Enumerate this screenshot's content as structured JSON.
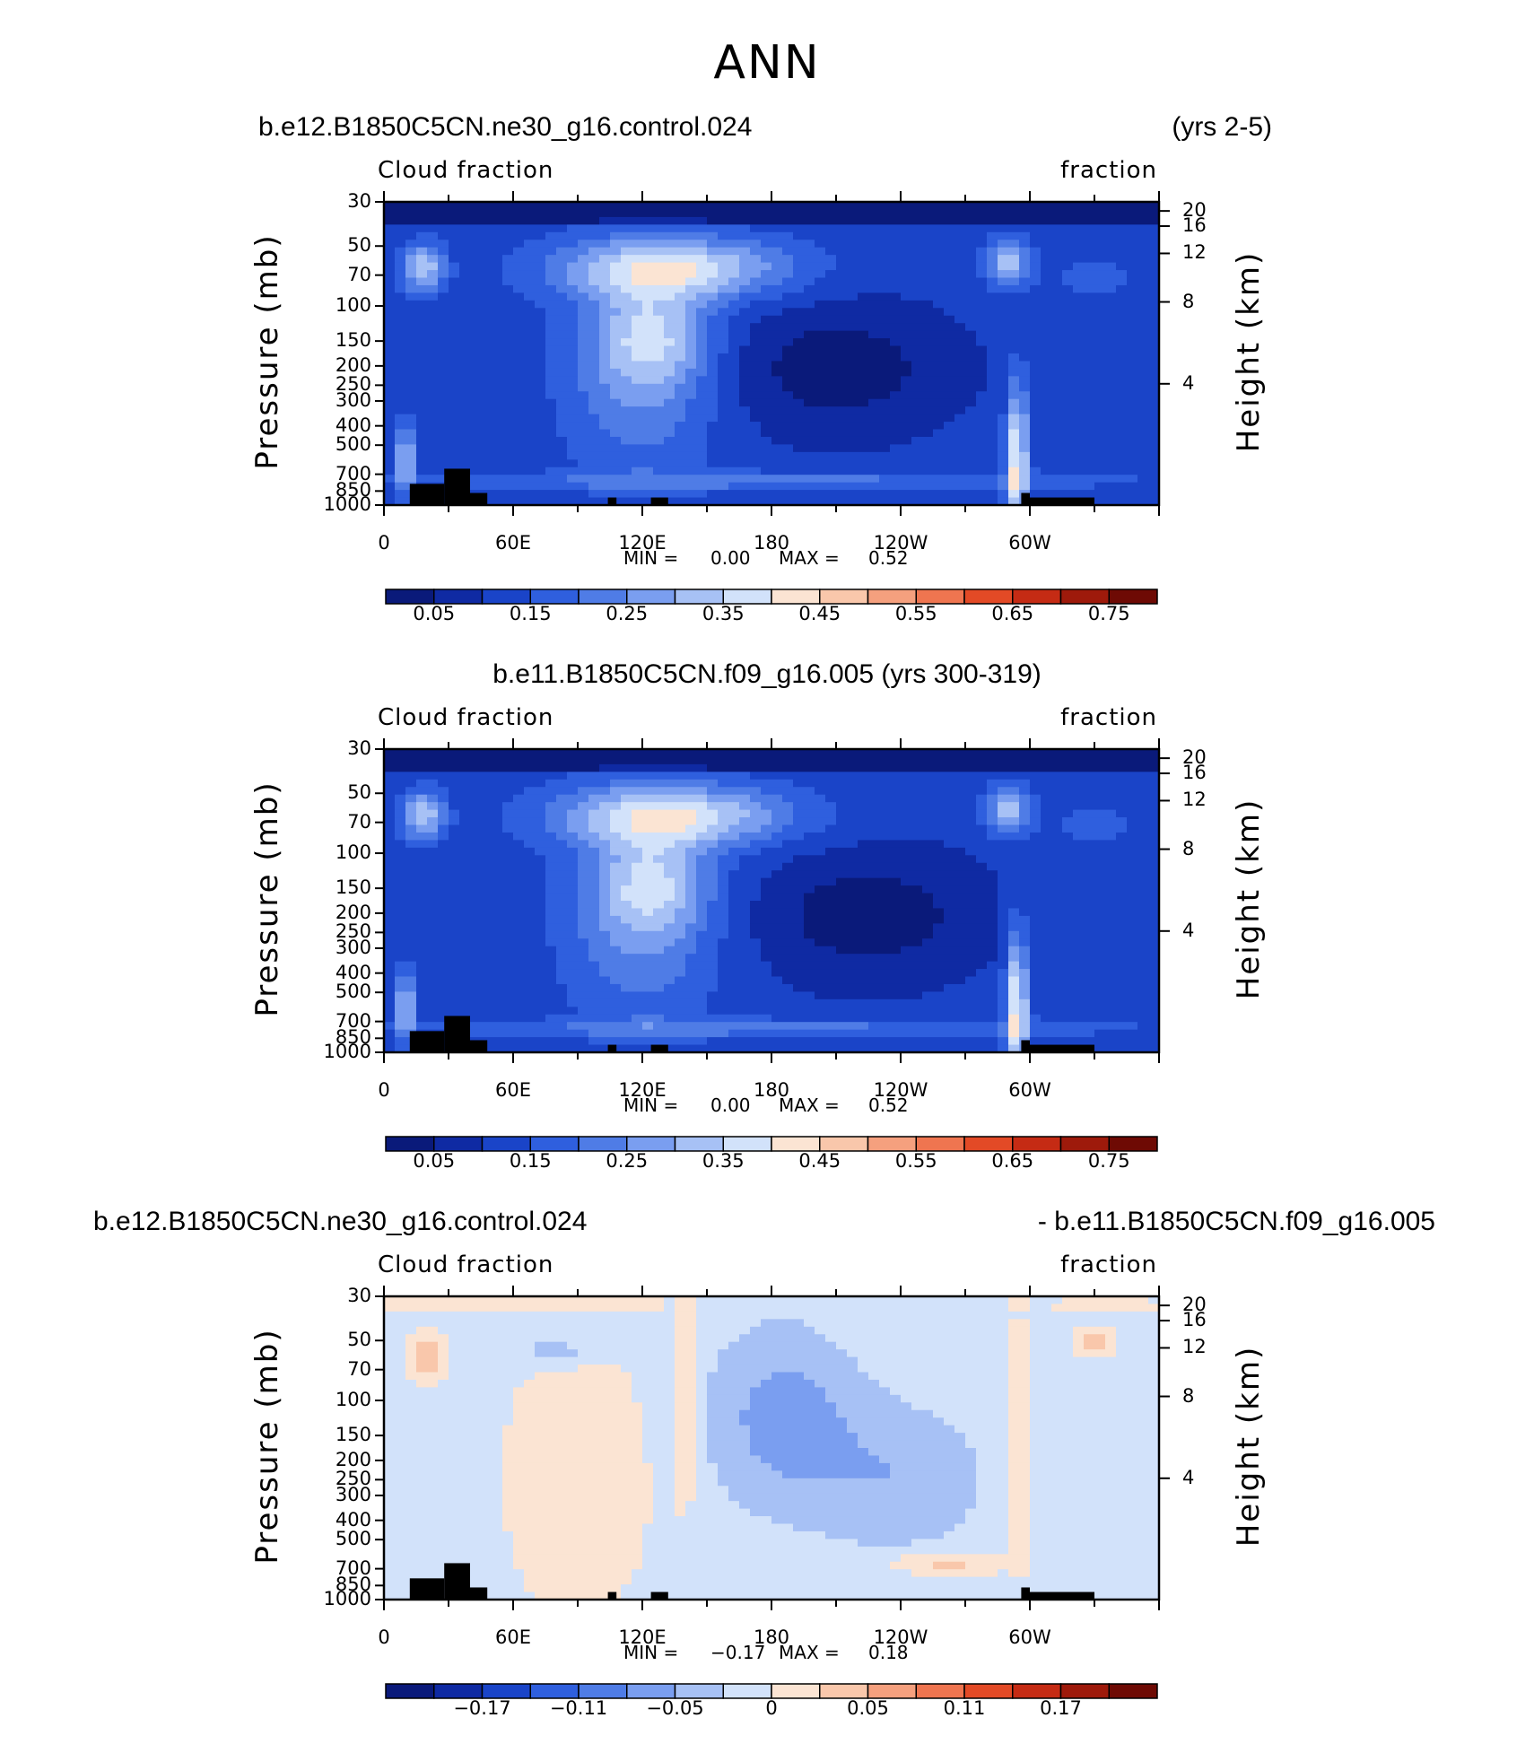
{
  "title": "ANN",
  "panels": [
    {
      "case_title": "b.e12.B1850C5CN.ne30_g16.control.024",
      "years": "(yrs 2-5)",
      "left_label": "Cloud fraction",
      "right_label": "fraction",
      "stats": {
        "min_label": "MIN =",
        "min": "0.00",
        "max_label": "MAX =",
        "max": "0.52"
      }
    },
    {
      "case_title": "b.e11.B1850C5CN.f09_g16.005 (yrs 300-319)",
      "left_label": "Cloud fraction",
      "right_label": "fraction",
      "stats": {
        "min_label": "MIN =",
        "min": "0.00",
        "max_label": "MAX =",
        "max": "0.52"
      }
    },
    {
      "case_title": "b.e12.B1850C5CN.ne30_g16.control.024",
      "case_title_right": "- b.e11.B1850C5CN.f09_g16.005",
      "left_label": "Cloud fraction",
      "right_label": "fraction",
      "stats": {
        "min_label": "MIN =",
        "min": "−0.17",
        "max_label": "MAX =",
        "max": "0.18"
      }
    }
  ],
  "chart_data": [
    {
      "type": "heatmap",
      "variable": "Cloud fraction",
      "units": "fraction",
      "x_ticklabels": [
        "0",
        "60E",
        "120E",
        "180",
        "120W",
        "60W"
      ],
      "x_range_deg_east": [
        0,
        360
      ],
      "y_left_label": "Pressure (mb)",
      "y_left_ticks": [
        30,
        50,
        70,
        100,
        150,
        200,
        250,
        300,
        400,
        500,
        700,
        850,
        1000
      ],
      "y_left_ticklabels": [
        "30",
        "50",
        "70",
        "100",
        "150",
        "200",
        "250",
        "300",
        "400",
        "500",
        "700",
        "850",
        "1000"
      ],
      "y_right_label": "Height (km)",
      "y_right_ticks": [
        20,
        16,
        12,
        8,
        4
      ],
      "y_right_ticklabels": [
        "20",
        "16",
        "12",
        "8",
        "4"
      ],
      "colorbar_ticklabels": [
        "0.05",
        "0.15",
        "0.25",
        "0.35",
        "0.45",
        "0.55",
        "0.65",
        "0.75"
      ],
      "colorbar_levels": 16,
      "min": 0.0,
      "max": 0.52
    },
    {
      "type": "heatmap",
      "variable": "Cloud fraction",
      "units": "fraction",
      "x_ticklabels": [
        "0",
        "60E",
        "120E",
        "180",
        "120W",
        "60W"
      ],
      "x_range_deg_east": [
        0,
        360
      ],
      "y_left_label": "Pressure (mb)",
      "y_left_ticks": [
        30,
        50,
        70,
        100,
        150,
        200,
        250,
        300,
        400,
        500,
        700,
        850,
        1000
      ],
      "y_left_ticklabels": [
        "30",
        "50",
        "70",
        "100",
        "150",
        "200",
        "250",
        "300",
        "400",
        "500",
        "700",
        "850",
        "1000"
      ],
      "y_right_label": "Height (km)",
      "y_right_ticks": [
        20,
        16,
        12,
        8,
        4
      ],
      "y_right_ticklabels": [
        "20",
        "16",
        "12",
        "8",
        "4"
      ],
      "colorbar_ticklabels": [
        "0.05",
        "0.15",
        "0.25",
        "0.35",
        "0.45",
        "0.55",
        "0.65",
        "0.75"
      ],
      "colorbar_levels": 16,
      "min": 0.0,
      "max": 0.52
    },
    {
      "type": "heatmap",
      "variable": "Cloud fraction",
      "units": "fraction",
      "x_ticklabels": [
        "0",
        "60E",
        "120E",
        "180",
        "120W",
        "60W"
      ],
      "x_range_deg_east": [
        0,
        360
      ],
      "y_left_label": "Pressure (mb)",
      "y_left_ticks": [
        30,
        50,
        70,
        100,
        150,
        200,
        250,
        300,
        400,
        500,
        700,
        850,
        1000
      ],
      "y_left_ticklabels": [
        "30",
        "50",
        "70",
        "100",
        "150",
        "200",
        "250",
        "300",
        "400",
        "500",
        "700",
        "850",
        "1000"
      ],
      "y_right_label": "Height (km)",
      "y_right_ticks": [
        20,
        16,
        12,
        8,
        4
      ],
      "y_right_ticklabels": [
        "20",
        "16",
        "12",
        "8",
        "4"
      ],
      "colorbar_ticklabels": [
        "−0.17",
        "−0.11",
        "−0.05",
        "0",
        "0.05",
        "0.11",
        "0.17"
      ],
      "colorbar_levels": 16,
      "min": -0.17,
      "max": 0.18
    }
  ],
  "colors": {
    "colorbar": [
      "#0a1a7a",
      "#0f2aa3",
      "#1a44c8",
      "#2f5fde",
      "#4f7ce6",
      "#7a9ef0",
      "#a7c1f5",
      "#d2e2fa",
      "#fbe4d3",
      "#f9c7ab",
      "#f5a07e",
      "#ef7550",
      "#e34a26",
      "#c52b14",
      "#9e1a0b",
      "#6e0a04"
    ],
    "land": "#000000"
  }
}
